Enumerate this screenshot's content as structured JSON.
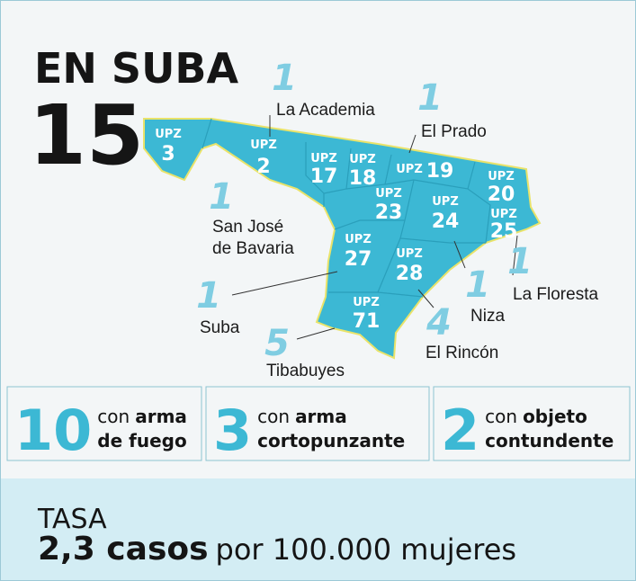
{
  "header": {
    "title": "EN SUBA",
    "total": 15
  },
  "map": {
    "upz": [
      {
        "prefix": "UPZ",
        "number": 3
      },
      {
        "prefix": "UPZ",
        "number": 2
      },
      {
        "prefix": "UPZ",
        "number": 17
      },
      {
        "prefix": "UPZ",
        "number": 18
      },
      {
        "prefix": "UPZ",
        "number": 19
      },
      {
        "prefix": "UPZ",
        "number": 20
      },
      {
        "prefix": "UPZ",
        "number": 23
      },
      {
        "prefix": "UPZ",
        "number": 24
      },
      {
        "prefix": "UPZ",
        "number": 25
      },
      {
        "prefix": "UPZ",
        "number": 27
      },
      {
        "prefix": "UPZ",
        "number": 28
      },
      {
        "prefix": "UPZ",
        "number": 71
      }
    ],
    "localities": [
      {
        "count": 1,
        "name": [
          "La Academia"
        ]
      },
      {
        "count": 1,
        "name": [
          "El Prado"
        ]
      },
      {
        "count": 1,
        "name": [
          "San José",
          "de Bavaria"
        ]
      },
      {
        "count": 1,
        "name": [
          "Suba"
        ]
      },
      {
        "count": 5,
        "name": [
          "Tibabuyes"
        ]
      },
      {
        "count": 4,
        "name": [
          "El Rincón"
        ]
      },
      {
        "count": 1,
        "name": [
          "Niza"
        ]
      },
      {
        "count": 1,
        "name": [
          "La Floresta"
        ]
      }
    ]
  },
  "stats": [
    {
      "value": 10,
      "prefix": "con",
      "bold": [
        "arma",
        "de fuego"
      ]
    },
    {
      "value": 3,
      "prefix": "con",
      "bold": [
        "arma",
        "cortopunzante"
      ]
    },
    {
      "value": 2,
      "prefix": "con",
      "bold": [
        "objeto",
        "contundente"
      ]
    }
  ],
  "rate": {
    "label": "TASA",
    "value": "2,3 casos",
    "unit": "por 100.000 mujeres"
  }
}
